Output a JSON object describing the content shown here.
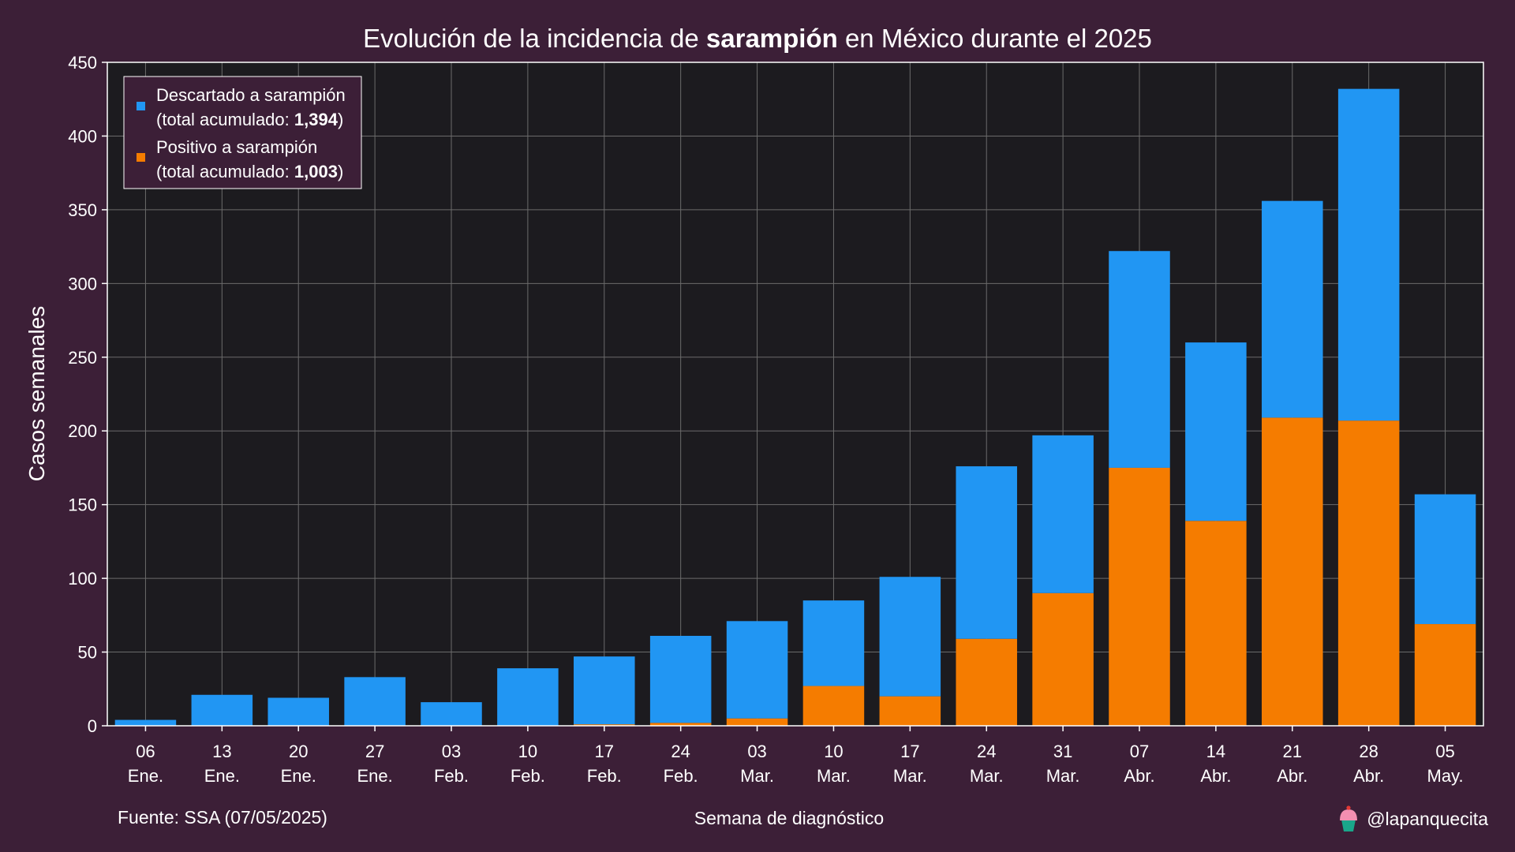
{
  "chart_data": {
    "type": "bar",
    "stacked": true,
    "title": {
      "prefix": "Evolución de la incidencia de ",
      "emphasis": "sarampión",
      "suffix": " en México durante el 2025"
    },
    "xlabel": "Semana de diagnóstico",
    "ylabel": "Casos semanales",
    "ylim": [
      0,
      450
    ],
    "yticks": [
      0,
      50,
      100,
      150,
      200,
      250,
      300,
      350,
      400,
      450
    ],
    "grid": true,
    "legend_position": "top-left",
    "categories": [
      [
        "06",
        "Ene."
      ],
      [
        "13",
        "Ene."
      ],
      [
        "20",
        "Ene."
      ],
      [
        "27",
        "Ene."
      ],
      [
        "03",
        "Feb."
      ],
      [
        "10",
        "Feb."
      ],
      [
        "17",
        "Feb."
      ],
      [
        "24",
        "Feb."
      ],
      [
        "03",
        "Mar."
      ],
      [
        "10",
        "Mar."
      ],
      [
        "17",
        "Mar."
      ],
      [
        "24",
        "Mar."
      ],
      [
        "31",
        "Mar."
      ],
      [
        "07",
        "Abr."
      ],
      [
        "14",
        "Abr."
      ],
      [
        "21",
        "Abr."
      ],
      [
        "28",
        "Abr."
      ],
      [
        "05",
        "May."
      ]
    ],
    "series": [
      {
        "legend_label": "Positivo a sarampión",
        "legend_sub_prefix": "(total acumulado: ",
        "legend_sub_value": "1,003",
        "legend_sub_suffix": ")",
        "color": "#f57c00",
        "values": [
          0,
          0,
          0,
          0,
          0,
          0,
          1,
          2,
          5,
          27,
          20,
          59,
          90,
          175,
          139,
          209,
          207,
          69
        ]
      },
      {
        "legend_label": "Descartado a sarampión",
        "legend_sub_prefix": "(total acumulado: ",
        "legend_sub_value": "1,394",
        "legend_sub_suffix": ")",
        "color": "#2196f3",
        "values": [
          4,
          21,
          19,
          33,
          16,
          39,
          46,
          59,
          66,
          58,
          81,
          117,
          107,
          147,
          121,
          147,
          225,
          88
        ]
      }
    ],
    "legend_order": [
      1,
      0
    ],
    "source": "Fuente: SSA (07/05/2025)",
    "credit": "@lapanquecita"
  },
  "colors": {
    "background": "#3c1f37",
    "plot_background": "#1c1b1f",
    "grid": "#6b6b6b",
    "text": "#ffffff"
  }
}
